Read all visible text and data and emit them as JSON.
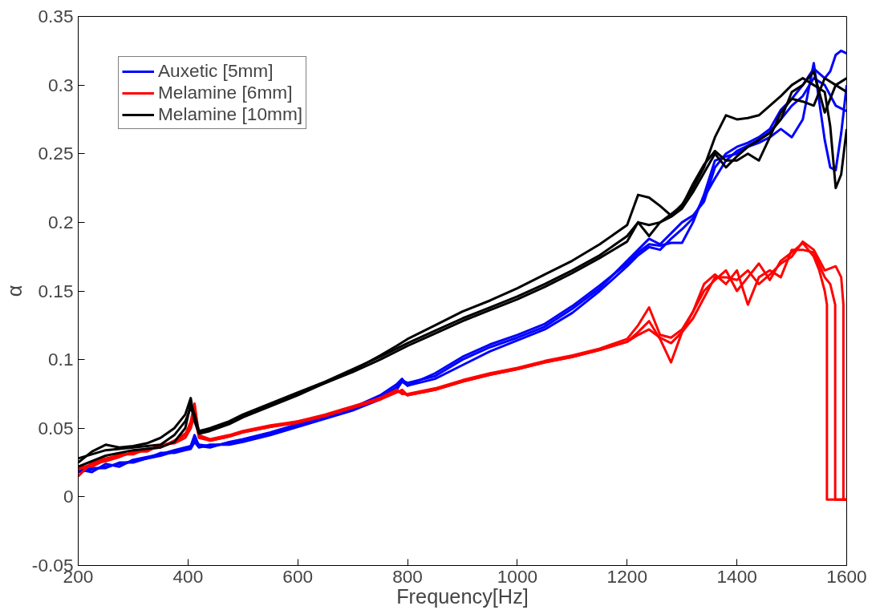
{
  "chart_data": {
    "type": "line",
    "xlabel": "Frequency[Hz]",
    "ylabel": "α",
    "xlim": [
      200,
      1600
    ],
    "ylim": [
      -0.05,
      0.35
    ],
    "xticks": [
      200,
      400,
      600,
      800,
      1000,
      1200,
      1400,
      1600
    ],
    "yticks": [
      -0.05,
      0,
      0.05,
      0.1,
      0.15,
      0.2,
      0.25,
      0.3,
      0.35
    ],
    "grid": false,
    "legend": "top left",
    "line_style": "solid",
    "marker": "none",
    "series": [
      {
        "name": "Auxetic [5mm]",
        "color": "#0000ff",
        "x": [
          200,
          225,
          250,
          275,
          300,
          325,
          350,
          375,
          395,
          405,
          412,
          420,
          440,
          475,
          500,
          550,
          600,
          650,
          700,
          750,
          780,
          790,
          800,
          850,
          900,
          950,
          1000,
          1050,
          1100,
          1150,
          1200,
          1220,
          1240,
          1260,
          1280,
          1300,
          1320,
          1340,
          1360,
          1380,
          1400,
          1420,
          1440,
          1460,
          1480,
          1500,
          1520,
          1540,
          1560,
          1570,
          1580,
          1590,
          1600
        ],
        "values": [
          0.018,
          0.02,
          0.022,
          0.024,
          0.026,
          0.028,
          0.03,
          0.033,
          0.035,
          0.036,
          0.042,
          0.038,
          0.037,
          0.039,
          0.041,
          0.046,
          0.052,
          0.058,
          0.064,
          0.072,
          0.08,
          0.085,
          0.083,
          0.088,
          0.1,
          0.109,
          0.116,
          0.124,
          0.137,
          0.152,
          0.172,
          0.18,
          0.188,
          0.184,
          0.192,
          0.2,
          0.205,
          0.215,
          0.24,
          0.25,
          0.255,
          0.258,
          0.262,
          0.268,
          0.282,
          0.29,
          0.3,
          0.312,
          0.305,
          0.31,
          0.322,
          0.325,
          0.323
        ]
      },
      {
        "color": "#0000ff",
        "x": [
          200,
          225,
          250,
          275,
          300,
          325,
          350,
          375,
          395,
          405,
          412,
          420,
          440,
          475,
          500,
          550,
          600,
          650,
          700,
          750,
          780,
          790,
          800,
          850,
          900,
          950,
          1000,
          1050,
          1100,
          1150,
          1200,
          1220,
          1240,
          1260,
          1280,
          1300,
          1320,
          1340,
          1360,
          1380,
          1400,
          1420,
          1440,
          1460,
          1480,
          1500,
          1520,
          1540,
          1560,
          1570,
          1580,
          1590,
          1600
        ],
        "values": [
          0.02,
          0.018,
          0.024,
          0.022,
          0.027,
          0.029,
          0.031,
          0.034,
          0.036,
          0.037,
          0.045,
          0.037,
          0.036,
          0.04,
          0.042,
          0.047,
          0.053,
          0.059,
          0.065,
          0.074,
          0.082,
          0.086,
          0.081,
          0.09,
          0.102,
          0.111,
          0.118,
          0.126,
          0.139,
          0.154,
          0.17,
          0.178,
          0.184,
          0.183,
          0.185,
          0.185,
          0.2,
          0.22,
          0.245,
          0.248,
          0.25,
          0.255,
          0.258,
          0.262,
          0.268,
          0.262,
          0.275,
          0.316,
          0.26,
          0.24,
          0.238,
          0.265,
          0.3
        ]
      },
      {
        "color": "#0000ff",
        "x": [
          200,
          225,
          250,
          275,
          300,
          325,
          350,
          375,
          395,
          405,
          412,
          420,
          440,
          475,
          500,
          550,
          600,
          650,
          700,
          750,
          780,
          790,
          800,
          850,
          900,
          950,
          1000,
          1050,
          1100,
          1150,
          1200,
          1220,
          1240,
          1260,
          1280,
          1300,
          1320,
          1340,
          1360,
          1380,
          1400,
          1420,
          1440,
          1460,
          1480,
          1500,
          1520,
          1540,
          1560,
          1580,
          1600
        ],
        "values": [
          0.019,
          0.021,
          0.021,
          0.025,
          0.025,
          0.028,
          0.032,
          0.032,
          0.034,
          0.035,
          0.04,
          0.036,
          0.038,
          0.038,
          0.04,
          0.045,
          0.051,
          0.057,
          0.063,
          0.071,
          0.078,
          0.084,
          0.081,
          0.086,
          0.096,
          0.106,
          0.114,
          0.122,
          0.134,
          0.15,
          0.168,
          0.176,
          0.182,
          0.18,
          0.188,
          0.195,
          0.203,
          0.218,
          0.232,
          0.245,
          0.252,
          0.256,
          0.26,
          0.266,
          0.275,
          0.285,
          0.292,
          0.305,
          0.3,
          0.285,
          0.281
        ]
      },
      {
        "name": "Melamine [6mm]",
        "color": "#ff0000",
        "x": [
          200,
          225,
          250,
          275,
          300,
          325,
          350,
          375,
          395,
          405,
          412,
          420,
          440,
          475,
          500,
          550,
          600,
          650,
          700,
          750,
          780,
          790,
          800,
          850,
          900,
          950,
          1000,
          1050,
          1100,
          1150,
          1200,
          1220,
          1240,
          1260,
          1280,
          1300,
          1320,
          1340,
          1360,
          1380,
          1400,
          1420,
          1440,
          1460,
          1480,
          1500,
          1520,
          1540,
          1550,
          1560,
          1564,
          1564,
          1600
        ],
        "values": [
          0.015,
          0.025,
          0.028,
          0.03,
          0.032,
          0.034,
          0.037,
          0.04,
          0.045,
          0.055,
          0.068,
          0.045,
          0.042,
          0.045,
          0.048,
          0.052,
          0.055,
          0.06,
          0.066,
          0.072,
          0.078,
          0.075,
          0.075,
          0.079,
          0.085,
          0.09,
          0.094,
          0.099,
          0.103,
          0.108,
          0.115,
          0.125,
          0.138,
          0.118,
          0.116,
          0.122,
          0.135,
          0.15,
          0.158,
          0.165,
          0.15,
          0.16,
          0.17,
          0.158,
          0.172,
          0.178,
          0.185,
          0.175,
          0.165,
          0.15,
          0.14,
          -0.002,
          -0.002
        ]
      },
      {
        "color": "#ff0000",
        "x": [
          200,
          225,
          250,
          275,
          300,
          325,
          350,
          375,
          395,
          405,
          412,
          420,
          440,
          475,
          500,
          550,
          600,
          650,
          700,
          750,
          780,
          790,
          800,
          850,
          900,
          950,
          1000,
          1050,
          1100,
          1150,
          1200,
          1220,
          1240,
          1260,
          1280,
          1300,
          1320,
          1340,
          1360,
          1380,
          1400,
          1420,
          1440,
          1460,
          1480,
          1500,
          1520,
          1540,
          1560,
          1570,
          1579,
          1579,
          1600
        ],
        "values": [
          0.022,
          0.022,
          0.027,
          0.031,
          0.031,
          0.035,
          0.036,
          0.041,
          0.046,
          0.052,
          0.062,
          0.044,
          0.041,
          0.044,
          0.047,
          0.051,
          0.055,
          0.059,
          0.065,
          0.071,
          0.076,
          0.078,
          0.074,
          0.078,
          0.084,
          0.089,
          0.093,
          0.098,
          0.102,
          0.107,
          0.113,
          0.12,
          0.128,
          0.115,
          0.098,
          0.12,
          0.135,
          0.155,
          0.162,
          0.155,
          0.165,
          0.14,
          0.16,
          0.165,
          0.16,
          0.18,
          0.18,
          0.178,
          0.16,
          0.155,
          0.14,
          -0.002,
          -0.002
        ]
      },
      {
        "color": "#ff0000",
        "x": [
          200,
          225,
          250,
          275,
          300,
          325,
          350,
          375,
          395,
          405,
          412,
          420,
          440,
          475,
          500,
          550,
          600,
          650,
          700,
          750,
          780,
          790,
          800,
          850,
          900,
          950,
          1000,
          1050,
          1100,
          1150,
          1200,
          1220,
          1240,
          1260,
          1280,
          1300,
          1320,
          1340,
          1360,
          1380,
          1400,
          1420,
          1440,
          1460,
          1480,
          1500,
          1520,
          1540,
          1560,
          1580,
          1590,
          1594,
          1594,
          1600
        ],
        "values": [
          0.02,
          0.024,
          0.026,
          0.029,
          0.033,
          0.033,
          0.038,
          0.039,
          0.043,
          0.05,
          0.06,
          0.043,
          0.041,
          0.044,
          0.047,
          0.051,
          0.054,
          0.059,
          0.065,
          0.071,
          0.077,
          0.076,
          0.074,
          0.078,
          0.084,
          0.089,
          0.093,
          0.098,
          0.102,
          0.107,
          0.113,
          0.118,
          0.122,
          0.116,
          0.112,
          0.12,
          0.13,
          0.145,
          0.16,
          0.16,
          0.158,
          0.165,
          0.155,
          0.162,
          0.17,
          0.175,
          0.186,
          0.18,
          0.165,
          0.168,
          0.16,
          0.14,
          -0.002,
          -0.002
        ]
      },
      {
        "name": "Melamine [10mm]",
        "color": "#000000",
        "x": [
          200,
          225,
          250,
          275,
          300,
          325,
          350,
          375,
          395,
          405,
          412,
          420,
          440,
          475,
          500,
          550,
          600,
          650,
          700,
          750,
          780,
          800,
          850,
          900,
          950,
          1000,
          1050,
          1100,
          1150,
          1200,
          1220,
          1240,
          1260,
          1280,
          1300,
          1320,
          1340,
          1360,
          1380,
          1400,
          1420,
          1440,
          1460,
          1480,
          1500,
          1520,
          1540,
          1560,
          1570,
          1580,
          1590,
          1600
        ],
        "values": [
          0.025,
          0.033,
          0.038,
          0.036,
          0.037,
          0.039,
          0.043,
          0.05,
          0.06,
          0.072,
          0.055,
          0.046,
          0.048,
          0.053,
          0.058,
          0.066,
          0.074,
          0.083,
          0.092,
          0.103,
          0.11,
          0.115,
          0.125,
          0.135,
          0.143,
          0.152,
          0.162,
          0.172,
          0.184,
          0.198,
          0.22,
          0.218,
          0.212,
          0.205,
          0.213,
          0.225,
          0.24,
          0.262,
          0.278,
          0.275,
          0.276,
          0.278,
          0.285,
          0.292,
          0.3,
          0.305,
          0.3,
          0.295,
          0.27,
          0.225,
          0.235,
          0.268
        ]
      },
      {
        "color": "#000000",
        "x": [
          200,
          250,
          300,
          350,
          375,
          395,
          405,
          412,
          420,
          440,
          475,
          500,
          550,
          600,
          650,
          700,
          750,
          800,
          850,
          900,
          950,
          1000,
          1050,
          1100,
          1150,
          1200,
          1220,
          1240,
          1260,
          1280,
          1300,
          1320,
          1340,
          1360,
          1380,
          1400,
          1420,
          1440,
          1460,
          1480,
          1500,
          1520,
          1540,
          1560,
          1580,
          1600
        ],
        "values": [
          0.022,
          0.03,
          0.034,
          0.036,
          0.04,
          0.05,
          0.068,
          0.06,
          0.048,
          0.05,
          0.055,
          0.06,
          0.068,
          0.076,
          0.084,
          0.093,
          0.102,
          0.112,
          0.121,
          0.13,
          0.138,
          0.146,
          0.155,
          0.165,
          0.176,
          0.19,
          0.2,
          0.198,
          0.2,
          0.204,
          0.21,
          0.222,
          0.236,
          0.25,
          0.24,
          0.248,
          0.255,
          0.26,
          0.265,
          0.275,
          0.295,
          0.3,
          0.31,
          0.28,
          0.3,
          0.305
        ]
      },
      {
        "color": "#000000",
        "x": [
          200,
          250,
          300,
          350,
          375,
          395,
          405,
          412,
          420,
          440,
          475,
          500,
          550,
          600,
          650,
          700,
          750,
          800,
          850,
          900,
          950,
          1000,
          1050,
          1100,
          1150,
          1200,
          1220,
          1240,
          1260,
          1280,
          1300,
          1320,
          1340,
          1360,
          1380,
          1400,
          1420,
          1440,
          1460,
          1480,
          1500,
          1520,
          1540,
          1560,
          1580,
          1600
        ],
        "values": [
          0.028,
          0.034,
          0.036,
          0.038,
          0.045,
          0.055,
          0.065,
          0.058,
          0.047,
          0.049,
          0.054,
          0.059,
          0.067,
          0.075,
          0.083,
          0.091,
          0.1,
          0.11,
          0.119,
          0.128,
          0.136,
          0.144,
          0.153,
          0.163,
          0.174,
          0.186,
          0.2,
          0.19,
          0.2,
          0.206,
          0.212,
          0.228,
          0.242,
          0.252,
          0.245,
          0.245,
          0.25,
          0.245,
          0.262,
          0.28,
          0.29,
          0.288,
          0.285,
          0.305,
          0.3,
          0.295
        ]
      }
    ]
  }
}
